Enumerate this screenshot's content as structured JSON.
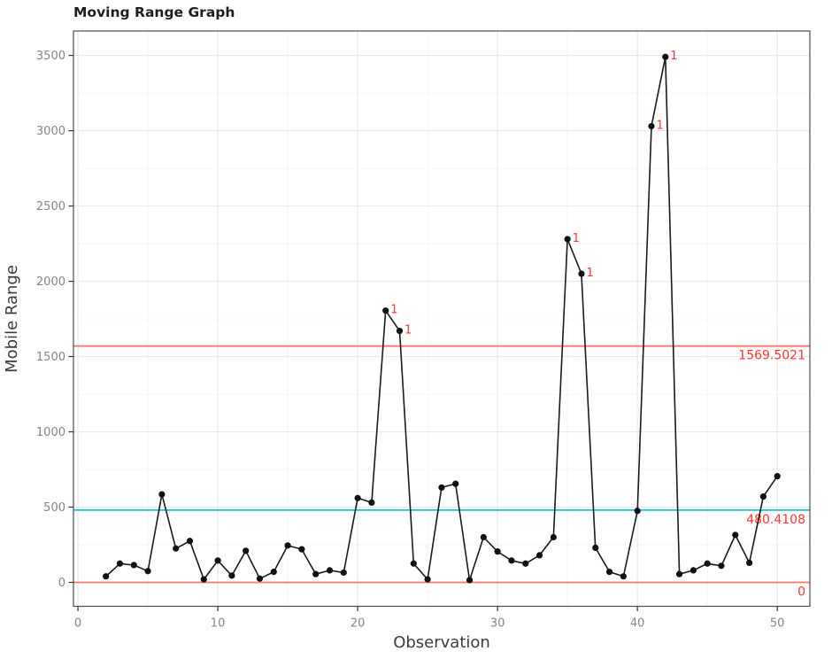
{
  "chart_data": {
    "type": "line",
    "title": "Moving Range Graph",
    "xlabel": "Observation",
    "ylabel": "Mobile Range",
    "x": [
      2,
      3,
      4,
      5,
      6,
      7,
      8,
      9,
      10,
      11,
      12,
      13,
      14,
      15,
      16,
      17,
      18,
      19,
      20,
      21,
      22,
      23,
      24,
      25,
      26,
      27,
      28,
      29,
      30,
      31,
      32,
      33,
      34,
      35,
      36,
      37,
      38,
      39,
      40,
      41,
      42,
      43,
      44,
      45,
      46,
      47,
      48,
      49,
      50
    ],
    "values": [
      40,
      125,
      115,
      75,
      585,
      225,
      275,
      20,
      145,
      45,
      210,
      25,
      70,
      245,
      220,
      55,
      80,
      65,
      560,
      530,
      1805,
      1670,
      125,
      20,
      630,
      655,
      15,
      300,
      205,
      145,
      125,
      180,
      300,
      2280,
      2050,
      230,
      70,
      40,
      475,
      3030,
      3490,
      55,
      80,
      125,
      110,
      315,
      130,
      570,
      705
    ],
    "out_of_control_x": [
      22,
      23,
      35,
      36,
      41,
      42
    ],
    "ooc_flag_label": "1",
    "control_lines": [
      {
        "name": "UCL",
        "value": 1569.5021,
        "label": "1569.5021",
        "color": "#f8766d"
      },
      {
        "name": "CL",
        "value": 480.4108,
        "label": "480.4108",
        "color": "#0fc9d4"
      },
      {
        "name": "LCL",
        "value": 0,
        "label": "0",
        "color": "#f8766d"
      }
    ],
    "x_ticks": [
      0,
      10,
      20,
      30,
      40,
      50
    ],
    "y_ticks": [
      0,
      500,
      1000,
      1500,
      2000,
      2500,
      3000,
      3500
    ],
    "x_minor_ticks": [
      5,
      15,
      25,
      35,
      45
    ],
    "y_minor_ticks": [
      250,
      750,
      1250,
      1750,
      2250,
      2750,
      3250
    ],
    "xlim": [
      -0.32,
      52.33
    ],
    "ylim": [
      -158.8,
      3662
    ],
    "grid": true,
    "legend": "none",
    "colors": {
      "series_line": "#1a1a1a",
      "point_fill": "#111111",
      "major_grid": "#e8e8e8",
      "minor_grid": "#f4f4f4",
      "panel_border": "#4d4d4d",
      "tick_mark": "#333333",
      "control_label_text": "#ff3333",
      "ooc_flag_text": "#ff3333"
    }
  }
}
